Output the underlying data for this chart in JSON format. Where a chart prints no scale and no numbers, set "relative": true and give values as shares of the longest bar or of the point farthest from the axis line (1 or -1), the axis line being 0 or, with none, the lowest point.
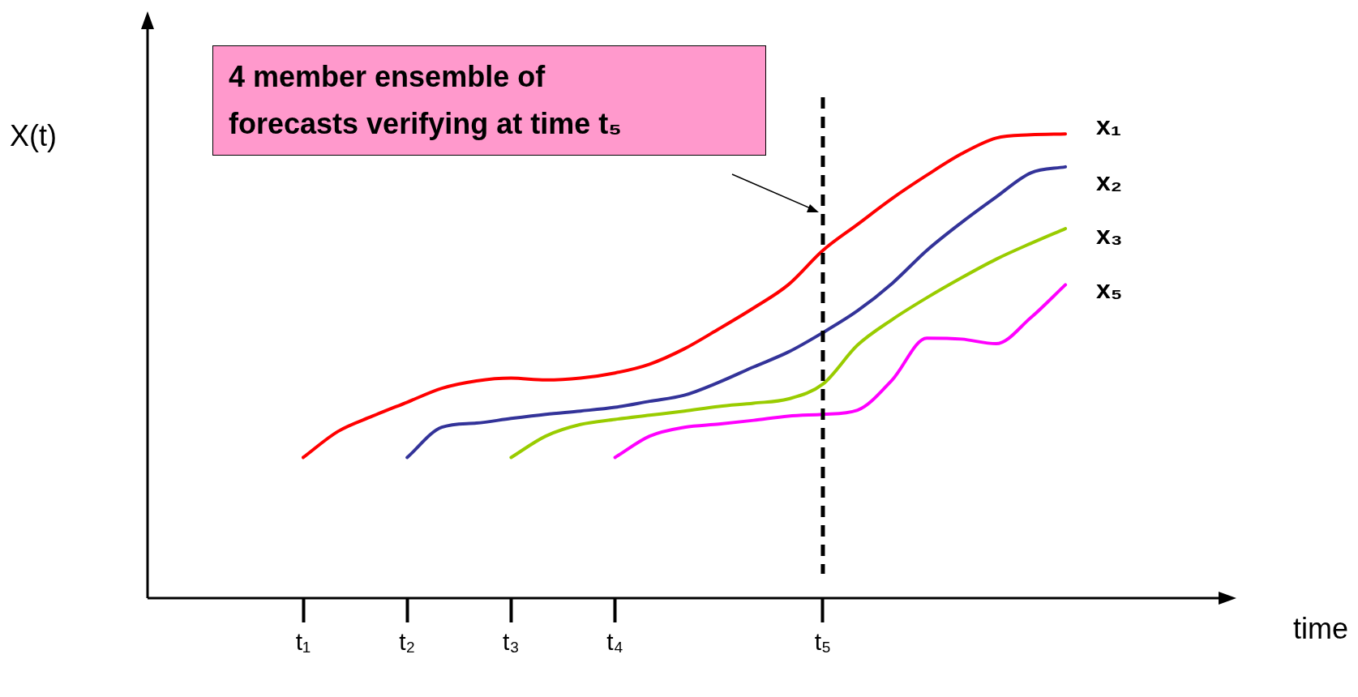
{
  "chart_data": {
    "type": "line",
    "relative": true,
    "xlabel": "time",
    "categories": [
      "t₁",
      null,
      null,
      "t₂",
      null,
      null,
      "t₃",
      null,
      null,
      "t₄",
      null,
      null,
      null,
      null,
      null,
      "t₅",
      null,
      null,
      null,
      null,
      null,
      null,
      null,
      null,
      null,
      null,
      null
    ],
    "grid": false,
    "legend": false,
    "marker": "none",
    "line_style": "solid",
    "series": [
      {
        "name": "x₁",
        "color": "#ff0000",
        "values": [
          0.303,
          0.359,
          0.392,
          0.422,
          0.452,
          0.468,
          0.474,
          0.47,
          0.474,
          0.485,
          0.504,
          0.537,
          0.58,
          0.625,
          0.675,
          0.749,
          0.805,
          0.861,
          0.911,
          0.957,
          0.991,
          0.998,
          1,
          null,
          null,
          null,
          null
        ]
      },
      {
        "name": "x₂",
        "color": "#333399",
        "values": [
          null,
          null,
          null,
          0.303,
          0.368,
          0.377,
          0.387,
          0.396,
          0.403,
          0.411,
          0.424,
          0.437,
          0.465,
          0.498,
          0.53,
          0.572,
          0.619,
          0.678,
          0.749,
          0.809,
          0.864,
          0.916,
          0.929,
          null,
          null,
          null,
          null
        ]
      },
      {
        "name": "x₃",
        "color": "#99cc00",
        "values": [
          null,
          null,
          null,
          null,
          null,
          null,
          0.303,
          0.349,
          0.374,
          0.385,
          0.394,
          0.403,
          0.413,
          0.42,
          0.429,
          0.461,
          0.545,
          0.6,
          0.647,
          0.69,
          0.73,
          0.764,
          0.796,
          null,
          null,
          null,
          null
        ]
      },
      {
        "name": "x₅",
        "color": "#ff00ff",
        "values": [
          null,
          null,
          null,
          null,
          null,
          null,
          null,
          null,
          null,
          0.303,
          0.349,
          0.368,
          0.375,
          0.383,
          0.392,
          0.396,
          0.405,
          0.47,
          0.56,
          0.558,
          0.548,
          0.604,
          0.675,
          null,
          null,
          null,
          null
        ]
      }
    ],
    "ref_lines": [
      {
        "axis": "x",
        "value": "t₅",
        "color": "#000000",
        "line_style": "dashed"
      }
    ],
    "annotations": [
      "4 member ensemble of forecasts verifying at time t₅",
      "X(t)"
    ]
  }
}
